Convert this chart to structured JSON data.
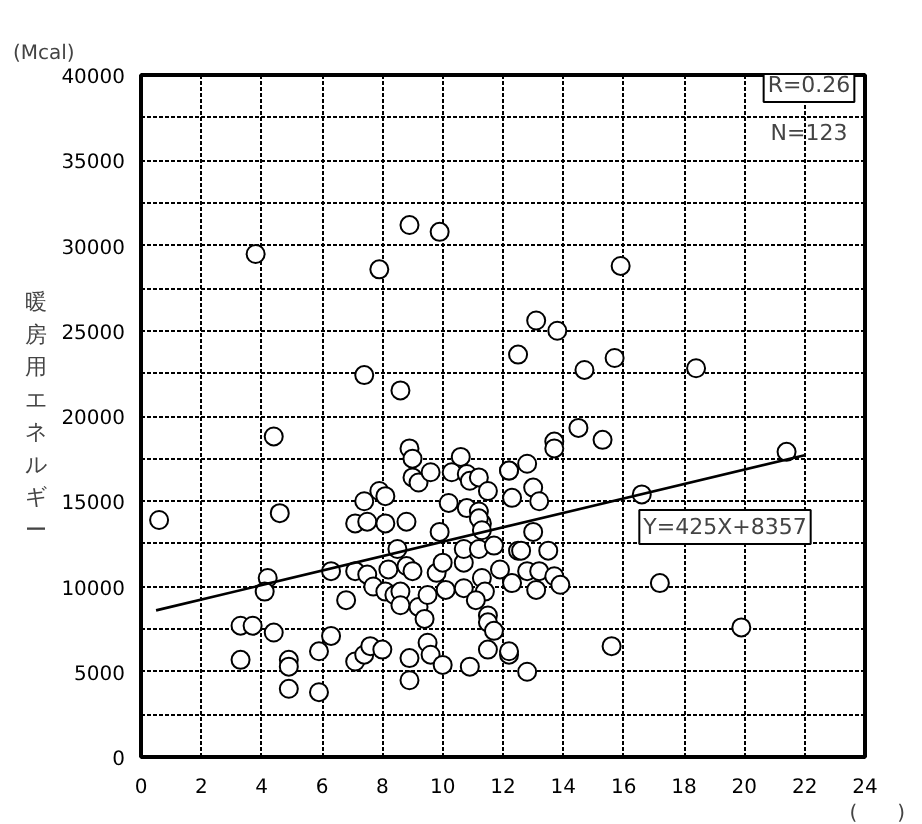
{
  "chart_data": {
    "type": "scatter",
    "ylabel": "暖房用エネルギー",
    "xlabel": "(　　)",
    "annotations": [
      "(Mcal)",
      "R=0.26",
      "N=123",
      "Y=425X+8357"
    ],
    "xlim": [
      0,
      24
    ],
    "ylim": [
      0,
      40000
    ],
    "xticks": [
      0,
      2,
      4,
      6,
      8,
      10,
      12,
      14,
      16,
      18,
      20,
      22,
      24
    ],
    "yticks": [
      0,
      {
        "value": 2500,
        "label": null
      },
      5000,
      {
        "value": 7500,
        "label": null
      },
      10000,
      {
        "value": 12500,
        "label": null
      },
      15000,
      {
        "value": 17500,
        "label": null
      },
      20000,
      {
        "value": 22500,
        "label": null
      },
      25000,
      {
        "value": 27500,
        "label": null
      },
      30000,
      {
        "value": 32500,
        "label": null
      },
      35000,
      {
        "value": 37500,
        "label": null
      },
      40000
    ],
    "grid": true,
    "series": [
      {
        "color": "#000000",
        "marker": "circle",
        "x": [
          3.8,
          7.9,
          8.9,
          9.9,
          15.9,
          7.4,
          8.6,
          4.4,
          12.5,
          8.9,
          9.0,
          9.0,
          9.2,
          9.6,
          10.3,
          10.6,
          10.8,
          10.9,
          11.2,
          11.5,
          12.2,
          12.3,
          7.9,
          8.1,
          7.4,
          10.2,
          10.8,
          11.2,
          4.6,
          0.6,
          7.1,
          7.5,
          8.1,
          8.8,
          11.3,
          9.9,
          11.2,
          11.3,
          4.2,
          4.1,
          6.3,
          7.1,
          7.5,
          7.7,
          8.2,
          8.5,
          8.8,
          9.0,
          8.1,
          8.4,
          8.6,
          8.6,
          9.2,
          9.4,
          9.5,
          9.8,
          10.0,
          10.1,
          10.7,
          10.7,
          10.7,
          11.2,
          11.3,
          11.4,
          11.1,
          11.5,
          11.5,
          11.7,
          11.5,
          11.7,
          11.9,
          12.2,
          12.3,
          12.5,
          6.8,
          3.3,
          3.7,
          3.3,
          4.4,
          4.9,
          4.9,
          4.9,
          5.9,
          5.9,
          6.3,
          7.1,
          7.4,
          7.6,
          8.0,
          8.9,
          8.9,
          9.5,
          9.6,
          10.0,
          10.9,
          13.0,
          12.6,
          13.5,
          12.8,
          13.2,
          13.7,
          13.1,
          13.9,
          12.2,
          12.8,
          17.2,
          15.6,
          19.9,
          13.1,
          13.8,
          15.7,
          14.7,
          18.4,
          14.5,
          15.3,
          13.7,
          13.7,
          12.8,
          13.0,
          13.2,
          16.6,
          21.4,
          12.2
        ],
        "values": [
          29500,
          28600,
          31200,
          30800,
          28800,
          22400,
          21500,
          18800,
          23600,
          18100,
          17500,
          16400,
          16100,
          16700,
          16700,
          17600,
          16600,
          16200,
          16400,
          15600,
          16800,
          15200,
          15600,
          15300,
          15000,
          14900,
          14600,
          14400,
          14300,
          13900,
          13700,
          13800,
          13700,
          13800,
          13700,
          13200,
          14000,
          13300,
          10500,
          9700,
          10900,
          10900,
          10700,
          10000,
          11000,
          12200,
          11200,
          10900,
          9700,
          9500,
          9700,
          8900,
          8800,
          8100,
          9500,
          10800,
          11400,
          9800,
          9900,
          11400,
          12200,
          12200,
          10500,
          9700,
          9200,
          8300,
          7900,
          7400,
          6300,
          12400,
          11000,
          6000,
          10200,
          12100,
          9200,
          7700,
          7700,
          5700,
          7300,
          5700,
          5300,
          4000,
          3800,
          6200,
          7100,
          5600,
          6000,
          6500,
          6300,
          5800,
          4500,
          6700,
          6000,
          5400,
          5300,
          13200,
          12100,
          12100,
          10900,
          10900,
          10600,
          9800,
          10100,
          6200,
          5000,
          10200,
          6500,
          7600,
          25600,
          25000,
          23400,
          22700,
          22800,
          19300,
          18600,
          18500,
          18100,
          17200,
          15800,
          15000,
          15400,
          17900,
          16800
        ]
      },
      {
        "type": "line",
        "color": "#000000",
        "x": [
          0.5,
          22
        ],
        "values": [
          8600,
          17700
        ],
        "line_style": "solid"
      }
    ]
  }
}
